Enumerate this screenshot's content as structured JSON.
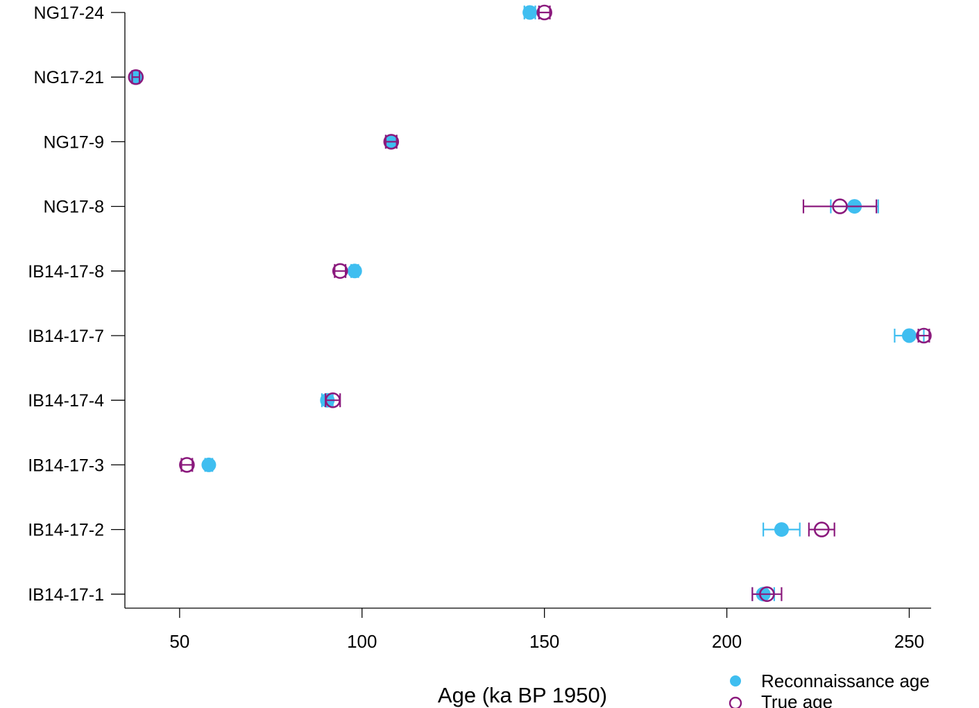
{
  "chart_data": {
    "type": "scatter",
    "orientation": "horizontal",
    "xlabel": "Age (ka BP 1950)",
    "xlim": [
      35,
      256
    ],
    "xticks": [
      50,
      100,
      150,
      200,
      250
    ],
    "categories": [
      "NG17-24",
      "NG17-21",
      "NG17-9",
      "NG17-8",
      "IB14-17-8",
      "IB14-17-7",
      "IB14-17-4",
      "IB14-17-3",
      "IB14-17-2",
      "IB14-17-1"
    ],
    "series": [
      {
        "name": "Reconnaissance age",
        "marker": "filled-circle",
        "color": "#3fbef0",
        "values": [
          146,
          38,
          108,
          235,
          98,
          250,
          90.5,
          58,
          215,
          210
        ],
        "errors": [
          1.5,
          1,
          1.5,
          6.5,
          1,
          4,
          1.5,
          1,
          5,
          3
        ]
      },
      {
        "name": "True age",
        "marker": "open-circle",
        "color": "#8b1a7d",
        "values": [
          150,
          38,
          108,
          231,
          94,
          254,
          92,
          52,
          226,
          211
        ],
        "errors": [
          1.5,
          1,
          1.5,
          10,
          1.5,
          1.5,
          2,
          1.5,
          3.5,
          4
        ]
      }
    ],
    "legend": {
      "placement": "bottom-right"
    }
  }
}
